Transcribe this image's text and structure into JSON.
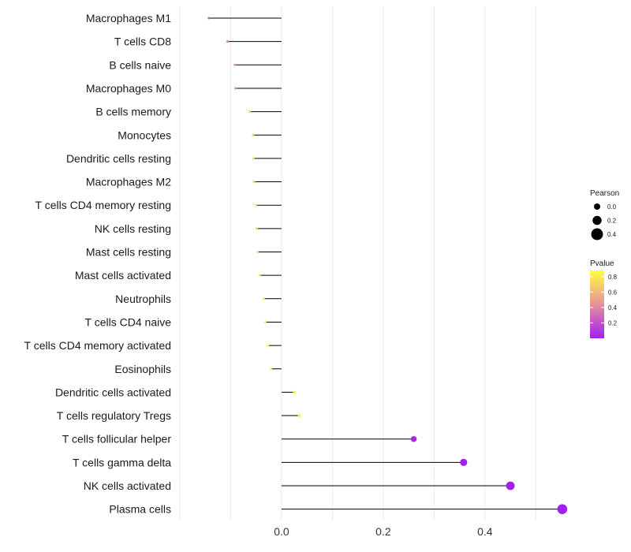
{
  "chart_data": {
    "type": "lollipop",
    "title": "",
    "xlabel": "",
    "ylabel": "",
    "xlim": [
      -0.2,
      0.56
    ],
    "x_ticks": [
      0.0,
      0.2,
      0.4
    ],
    "x_tick_labels": [
      "0.0",
      "0.2",
      "0.4"
    ],
    "grid": true,
    "legend_position": "right",
    "categories": [
      "Macrophages M1",
      "T cells CD8",
      "B cells naive",
      "Macrophages M0",
      "B cells memory",
      "Monocytes",
      "Dendritic cells resting",
      "Macrophages M2",
      "T cells CD4 memory resting",
      "NK cells resting",
      "Mast cells resting",
      "Mast cells activated",
      "Neutrophils",
      "T cells CD4 naive",
      "T cells CD4 memory activated",
      "Eosinophils",
      "Dendritic cells activated",
      "T cells regulatory  Tregs ",
      "T cells follicular helper",
      "T cells gamma delta",
      "NK cells activated",
      "Plasma cells"
    ],
    "pearson": [
      -0.143,
      -0.106,
      -0.092,
      -0.091,
      -0.062,
      -0.056,
      -0.055,
      -0.054,
      -0.05,
      -0.049,
      -0.047,
      -0.043,
      -0.035,
      -0.032,
      -0.027,
      -0.021,
      0.025,
      0.035,
      0.26,
      0.358,
      0.45,
      0.552
    ],
    "pvalue": [
      0.26,
      0.36,
      0.45,
      0.46,
      0.63,
      0.66,
      0.67,
      0.68,
      0.71,
      0.72,
      0.73,
      0.76,
      0.8,
      0.81,
      0.84,
      0.87,
      0.85,
      0.79,
      0.03,
      0.01,
      0.005,
      0.002
    ],
    "legend": {
      "size_title": "Pearson",
      "size_values": [
        0.0,
        0.2,
        0.4
      ],
      "size_labels": [
        "0.0",
        "0.2",
        "0.4"
      ],
      "color_title": "Pvalue",
      "color_ticks": [
        0.8,
        0.6,
        0.4,
        0.2
      ],
      "color_tick_labels": [
        "0.8",
        "0.6",
        "0.4",
        "0.2"
      ],
      "color_range": [
        0.0,
        0.88
      ],
      "color_low": "#a020f0",
      "color_mid": "#e6909b",
      "color_high": "#ffff3c"
    },
    "stem_color": "#000000",
    "grid_color": "#ebebeb"
  }
}
